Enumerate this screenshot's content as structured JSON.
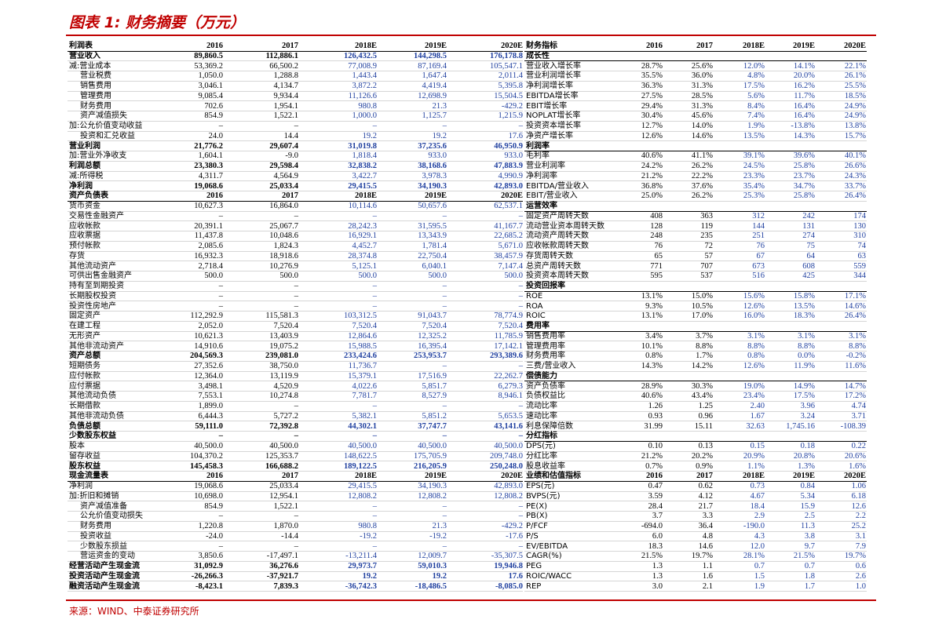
{
  "title": "图表 1: 财务摘要（万元）",
  "left": {
    "rows": [
      [
        "利润表",
        "2016",
        "2017",
        "2018E",
        "2019E",
        "2020E"
      ],
      [
        "营业收入",
        "89,860.5",
        "112,886.1",
        "126,432.5",
        "144,298.5",
        "176,178.8"
      ],
      [
        "减:营业成本",
        "53,369.2",
        "66,500.2",
        "77,008.9",
        "87,169.4",
        "105,547.1"
      ],
      [
        "营业税费",
        "1,050.0",
        "1,288.8",
        "1,443.4",
        "1,647.4",
        "2,011.4"
      ],
      [
        "销售费用",
        "3,046.1",
        "4,134.7",
        "3,872.2",
        "4,419.4",
        "5,395.8"
      ],
      [
        "管理费用",
        "9,085.4",
        "9,934.4",
        "11,126.6",
        "12,698.9",
        "15,504.5"
      ],
      [
        "财务费用",
        "702.6",
        "1,954.1",
        "980.8",
        "21.3",
        "-429.2"
      ],
      [
        "资产减值损失",
        "854.9",
        "1,522.1",
        "1,000.0",
        "1,125.7",
        "1,215.9"
      ],
      [
        "加:公允价值变动收益",
        "–",
        "–",
        "–",
        "–",
        "–"
      ],
      [
        "投资和汇兑收益",
        "24.0",
        "14.4",
        "19.2",
        "19.2",
        "17.6"
      ],
      [
        "营业利润",
        "21,776.2",
        "29,607.4",
        "31,019.8",
        "37,235.6",
        "46,950.9"
      ],
      [
        "加:营业外净收支",
        "1,604.1",
        "-9.0",
        "1,818.4",
        "933.0",
        "933.0"
      ],
      [
        "利润总额",
        "23,380.3",
        "29,598.4",
        "32,838.2",
        "38,168.6",
        "47,883.9"
      ],
      [
        "减:所得税",
        "4,311.7",
        "4,564.9",
        "3,422.7",
        "3,978.3",
        "4,990.9"
      ],
      [
        "净利润",
        "19,068.6",
        "25,033.4",
        "29,415.5",
        "34,190.3",
        "42,893.0"
      ],
      [
        "资产负债表",
        "2016",
        "2017",
        "2018E",
        "2019E",
        "2020E"
      ],
      [
        "货币资金",
        "10,627.3",
        "16,864.0",
        "10,114.6",
        "50,657.6",
        "62,537.1"
      ],
      [
        "交易性金融资产",
        "–",
        "–",
        "–",
        "–",
        "–"
      ],
      [
        "应收帐款",
        "20,391.1",
        "25,067.7",
        "28,242.3",
        "31,595.5",
        "41,167.7"
      ],
      [
        "应收票据",
        "11,437.8",
        "10,048.6",
        "16,929.1",
        "13,343.9",
        "22,685.2"
      ],
      [
        "预付帐款",
        "2,085.6",
        "1,824.3",
        "4,452.7",
        "1,781.4",
        "5,671.0"
      ],
      [
        "存货",
        "16,932.3",
        "18,918.6",
        "28,374.8",
        "22,750.4",
        "38,457.9"
      ],
      [
        "其他流动资产",
        "2,718.4",
        "10,276.9",
        "5,125.1",
        "6,040.1",
        "7,147.4"
      ],
      [
        "可供出售金融资产",
        "500.0",
        "500.0",
        "500.0",
        "500.0",
        "500.0"
      ],
      [
        "持有至到期投资",
        "–",
        "–",
        "–",
        "–",
        "–"
      ],
      [
        "长期股权投资",
        "–",
        "–",
        "–",
        "–",
        "–"
      ],
      [
        "投资性房地产",
        "–",
        "–",
        "–",
        "–",
        "–"
      ],
      [
        "固定资产",
        "112,292.9",
        "115,581.3",
        "103,312.5",
        "91,043.7",
        "78,774.9"
      ],
      [
        "在建工程",
        "2,052.0",
        "7,520.4",
        "7,520.4",
        "7,520.4",
        "7,520.4"
      ],
      [
        "无形资产",
        "10,621.3",
        "13,403.9",
        "12,864.6",
        "12,325.2",
        "11,785.9"
      ],
      [
        "其他非流动资产",
        "14,910.6",
        "19,075.2",
        "15,988.5",
        "16,395.4",
        "17,142.1"
      ],
      [
        "资产总额",
        "204,569.3",
        "239,081.0",
        "233,424.6",
        "253,953.7",
        "293,389.6"
      ],
      [
        "短期债务",
        "27,352.6",
        "38,750.0",
        "11,736.7",
        "–",
        "–"
      ],
      [
        "应付帐款",
        "12,364.0",
        "13,119.9",
        "15,379.1",
        "17,516.9",
        "22,262.7"
      ],
      [
        "应付票据",
        "3,498.1",
        "4,520.9",
        "4,022.6",
        "5,851.7",
        "6,279.3"
      ],
      [
        "其他流动负债",
        "7,553.1",
        "10,274.8",
        "7,781.7",
        "8,527.9",
        "8,946.1"
      ],
      [
        "长期借款",
        "1,899.0",
        "–",
        "–",
        "–",
        "–"
      ],
      [
        "其他非流动负债",
        "6,444.3",
        "5,727.2",
        "5,382.1",
        "5,851.2",
        "5,653.5"
      ],
      [
        "负债总额",
        "59,111.0",
        "72,392.8",
        "44,302.1",
        "37,747.7",
        "43,141.6"
      ],
      [
        "少数股东权益",
        "–",
        "–",
        "–",
        "–",
        "–"
      ],
      [
        "股本",
        "40,500.0",
        "40,500.0",
        "40,500.0",
        "40,500.0",
        "40,500.0"
      ],
      [
        "留存收益",
        "104,370.2",
        "125,353.7",
        "148,622.5",
        "175,705.9",
        "209,748.0"
      ],
      [
        "股东权益",
        "145,458.3",
        "166,688.2",
        "189,122.5",
        "216,205.9",
        "250,248.0"
      ],
      [
        "现金流量表",
        "2016",
        "2017",
        "2018E",
        "2019E",
        "2020E"
      ],
      [
        "净利润",
        "19,068.6",
        "25,033.4",
        "29,415.5",
        "34,190.3",
        "42,893.0"
      ],
      [
        "加:折旧和摊销",
        "10,698.0",
        "12,954.1",
        "12,808.2",
        "12,808.2",
        "12,808.2"
      ],
      [
        "资产减值准备",
        "854.9",
        "1,522.1",
        "–",
        "–",
        "–"
      ],
      [
        "公允价值变动损失",
        "–",
        "–",
        "–",
        "–",
        "–"
      ],
      [
        "财务费用",
        "1,220.8",
        "1,870.0",
        "980.8",
        "21.3",
        "-429.2"
      ],
      [
        "投资收益",
        "-24.0",
        "-14.4",
        "-19.2",
        "-19.2",
        "-17.6"
      ],
      [
        "少数股东损益",
        "–",
        "–",
        "–",
        "–",
        "–"
      ],
      [
        "营运资金的变动",
        "3,850.6",
        "-17,497.1",
        "-13,211.4",
        "12,009.7",
        "-35,307.5"
      ],
      [
        "经营活动产生现金流",
        "31,092.9",
        "36,276.6",
        "29,973.7",
        "59,010.3",
        "19,946.8"
      ],
      [
        "投资活动产生现金流",
        "-26,266.3",
        "-37,921.7",
        "19.2",
        "19.2",
        "17.6"
      ],
      [
        "融资活动产生现金流",
        "-8,423.1",
        "7,839.3",
        "-36,742.3",
        "-18,486.5",
        "-8,085.0"
      ]
    ]
  },
  "right": {
    "rows": [
      [
        "财务指标",
        "2016",
        "2017",
        "2018E",
        "2019E",
        "2020E"
      ],
      [
        "成长性"
      ],
      [
        "营业收入增长率",
        "28.7%",
        "25.6%",
        "12.0%",
        "14.1%",
        "22.1%"
      ],
      [
        "营业利润增长率",
        "35.5%",
        "36.0%",
        "4.8%",
        "20.0%",
        "26.1%"
      ],
      [
        "净利润增长率",
        "36.3%",
        "31.3%",
        "17.5%",
        "16.2%",
        "25.5%"
      ],
      [
        "EBITDA增长率",
        "27.5%",
        "28.5%",
        "5.6%",
        "11.7%",
        "18.5%"
      ],
      [
        "EBIT增长率",
        "29.4%",
        "31.3%",
        "8.4%",
        "16.4%",
        "24.9%"
      ],
      [
        "NOPLAT增长率",
        "30.4%",
        "45.6%",
        "7.4%",
        "16.4%",
        "24.9%"
      ],
      [
        "投资资本增长率",
        "12.7%",
        "14.0%",
        "1.9%",
        "-13.8%",
        "13.8%"
      ],
      [
        "净资产增长率",
        "12.6%",
        "14.6%",
        "13.5%",
        "14.3%",
        "15.7%"
      ],
      [
        "利润率"
      ],
      [
        "毛利率",
        "40.6%",
        "41.1%",
        "39.1%",
        "39.6%",
        "40.1%"
      ],
      [
        "营业利润率",
        "24.2%",
        "26.2%",
        "24.5%",
        "25.8%",
        "26.6%"
      ],
      [
        "净利润率",
        "21.2%",
        "22.2%",
        "23.3%",
        "23.7%",
        "24.3%"
      ],
      [
        "EBITDA/营业收入",
        "36.8%",
        "37.6%",
        "35.4%",
        "34.7%",
        "33.7%"
      ],
      [
        "EBIT/营业收入",
        "25.0%",
        "26.2%",
        "25.3%",
        "25.8%",
        "26.4%"
      ],
      [
        "运营效率"
      ],
      [
        "固定资产周转天数",
        "408",
        "363",
        "312",
        "242",
        "174"
      ],
      [
        "流动营业资本周转天数",
        "128",
        "119",
        "144",
        "131",
        "130"
      ],
      [
        "流动资产周转天数",
        "248",
        "235",
        "251",
        "274",
        "310"
      ],
      [
        "应收帐款周转天数",
        "76",
        "72",
        "76",
        "75",
        "74"
      ],
      [
        "存货周转天数",
        "65",
        "57",
        "67",
        "64",
        "63"
      ],
      [
        "总资产周转天数",
        "771",
        "707",
        "673",
        "608",
        "559"
      ],
      [
        "投资资本周转天数",
        "595",
        "537",
        "516",
        "425",
        "344"
      ],
      [
        "投资回报率"
      ],
      [
        "ROE",
        "13.1%",
        "15.0%",
        "15.6%",
        "15.8%",
        "17.1%"
      ],
      [
        "ROA",
        "9.3%",
        "10.5%",
        "12.6%",
        "13.5%",
        "14.6%"
      ],
      [
        "ROIC",
        "13.1%",
        "17.0%",
        "16.0%",
        "18.3%",
        "26.4%"
      ],
      [
        "费用率"
      ],
      [
        "销售费用率",
        "3.4%",
        "3.7%",
        "3.1%",
        "3.1%",
        "3.1%"
      ],
      [
        "管理费用率",
        "10.1%",
        "8.8%",
        "8.8%",
        "8.8%",
        "8.8%"
      ],
      [
        "财务费用率",
        "0.8%",
        "1.7%",
        "0.8%",
        "0.0%",
        "-0.2%"
      ],
      [
        "三费/营业收入",
        "14.3%",
        "14.2%",
        "12.6%",
        "11.9%",
        "11.6%"
      ],
      [
        "偿债能力"
      ],
      [
        "资产负债率",
        "28.9%",
        "30.3%",
        "19.0%",
        "14.9%",
        "14.7%"
      ],
      [
        "负债权益比",
        "40.6%",
        "43.4%",
        "23.4%",
        "17.5%",
        "17.2%"
      ],
      [
        "流动比率",
        "1.26",
        "1.25",
        "2.40",
        "3.96",
        "4.74"
      ],
      [
        "速动比率",
        "0.93",
        "0.96",
        "1.67",
        "3.24",
        "3.71"
      ],
      [
        "利息保障倍数",
        "31.99",
        "15.11",
        "32.63",
        "1,745.16",
        "-108.39"
      ],
      [
        "分红指标"
      ],
      [
        "DPS(元)",
        "0.10",
        "0.13",
        "0.15",
        "0.18",
        "0.22"
      ],
      [
        "分红比率",
        "21.2%",
        "20.2%",
        "20.9%",
        "20.8%",
        "20.6%"
      ],
      [
        "股息收益率",
        "0.7%",
        "0.9%",
        "1.1%",
        "1.3%",
        "1.6%"
      ],
      [
        "业绩和估值指标",
        "2016",
        "2017",
        "2018E",
        "2019E",
        "2020E"
      ],
      [
        "EPS(元)",
        "0.47",
        "0.62",
        "0.73",
        "0.84",
        "1.06"
      ],
      [
        "BVPS(元)",
        "3.59",
        "4.12",
        "4.67",
        "5.34",
        "6.18"
      ],
      [
        "PE(X)",
        "28.4",
        "21.7",
        "18.4",
        "15.9",
        "12.6"
      ],
      [
        "PB(X)",
        "3.7",
        "3.3",
        "2.9",
        "2.5",
        "2.2"
      ],
      [
        "P/FCF",
        "-694.0",
        "36.4",
        "-190.0",
        "11.3",
        "25.2"
      ],
      [
        "P/S",
        "6.0",
        "4.8",
        "4.3",
        "3.8",
        "3.1"
      ],
      [
        "EV/EBITDA",
        "18.3",
        "14.6",
        "12.0",
        "9.7",
        "7.9"
      ],
      [
        "CAGR(%)",
        "21.5%",
        "19.7%",
        "28.1%",
        "21.5%",
        "19.7%"
      ],
      [
        "PEG",
        "1.3",
        "1.1",
        "0.7",
        "0.7",
        "0.6"
      ],
      [
        "ROIC/WACC",
        "1.3",
        "1.6",
        "1.5",
        "1.8",
        "2.6"
      ],
      [
        "REP",
        "3.0",
        "2.1",
        "1.9",
        "1.7",
        "1.0"
      ]
    ]
  },
  "source": "来源：WIND、中泰证券研究所"
}
